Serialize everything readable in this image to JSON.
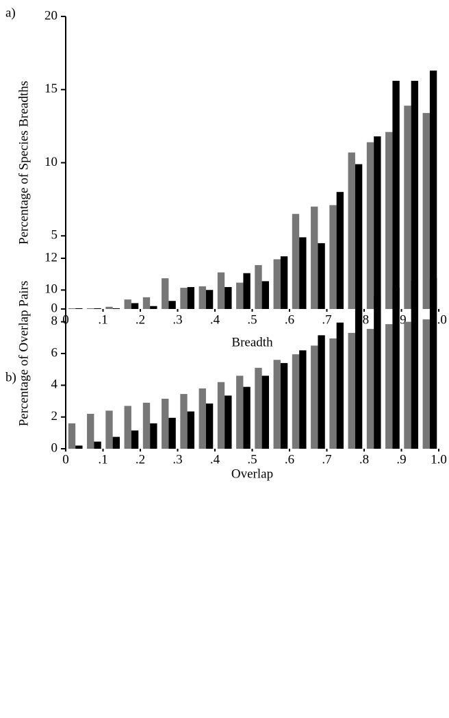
{
  "chart_data": [
    {
      "type": "histogram",
      "panel_label": "a)",
      "xlabel": "Breadth",
      "ylabel": "Percentage of Species Breadths",
      "bins": [
        0,
        0.05,
        0.1,
        0.15,
        0.2,
        0.25,
        0.3,
        0.35,
        0.4,
        0.45,
        0.5,
        0.55,
        0.6,
        0.65,
        0.7,
        0.75,
        0.8,
        0.85,
        0.9,
        0.95,
        1
      ],
      "xlim": [
        0,
        1
      ],
      "xticks": [
        0,
        {
          "value": 0.1,
          "label": ".1"
        },
        {
          "value": 0.2,
          "label": ".2"
        },
        {
          "value": 0.3,
          "label": ".3"
        },
        {
          "value": 0.4,
          "label": ".4"
        },
        {
          "value": 0.5,
          "label": ".5"
        },
        {
          "value": 0.6,
          "label": ".6"
        },
        {
          "value": 0.7,
          "label": ".7"
        },
        {
          "value": 0.8,
          "label": ".8"
        },
        {
          "value": 0.9,
          "label": ".9"
        },
        {
          "value": 1,
          "label": "1.0"
        }
      ],
      "ylim": [
        0,
        20
      ],
      "yticks": [
        0,
        5,
        10,
        15,
        20
      ],
      "series": [
        {
          "color": "#777777",
          "values": [
            0.05,
            0.05,
            0.15,
            0.65,
            0.8,
            2.1,
            1.45,
            1.55,
            2.5,
            1.8,
            3.0,
            3.4,
            6.5,
            7.0,
            7.1,
            10.7,
            11.4,
            12.1,
            13.9,
            13.4
          ]
        },
        {
          "color": "#000000",
          "values": [
            0.05,
            0.05,
            0.05,
            0.4,
            0.2,
            0.55,
            1.5,
            1.3,
            1.5,
            2.45,
            1.9,
            3.6,
            4.9,
            4.5,
            8.0,
            9.9,
            11.8,
            15.6,
            15.6,
            16.3
          ]
        }
      ]
    },
    {
      "type": "histogram",
      "panel_label": "b)",
      "xlabel": "Overlap",
      "ylabel": "Percentage of Overlap Pairs",
      "bins": [
        0,
        0.05,
        0.1,
        0.15,
        0.2,
        0.25,
        0.3,
        0.35,
        0.4,
        0.45,
        0.5,
        0.55,
        0.6,
        0.65,
        0.7,
        0.75,
        0.8,
        0.85,
        0.9,
        0.95,
        1
      ],
      "xlim": [
        0,
        1
      ],
      "xticks": [
        0,
        {
          "value": 0.1,
          "label": ".1"
        },
        {
          "value": 0.2,
          "label": ".2"
        },
        {
          "value": 0.3,
          "label": ".3"
        },
        {
          "value": 0.4,
          "label": ".4"
        },
        {
          "value": 0.5,
          "label": ".5"
        },
        {
          "value": 0.6,
          "label": ".6"
        },
        {
          "value": 0.7,
          "label": ".7"
        },
        {
          "value": 0.8,
          "label": ".8"
        },
        {
          "value": 0.9,
          "label": ".9"
        },
        {
          "value": 1,
          "label": "1.0"
        }
      ],
      "ylim": [
        0,
        12
      ],
      "yticks": [
        0,
        2,
        4,
        6,
        8,
        10,
        12
      ],
      "series": [
        {
          "color": "#777777",
          "values": [
            1.6,
            2.2,
            2.4,
            2.7,
            2.9,
            3.15,
            3.45,
            3.8,
            4.2,
            4.6,
            5.1,
            5.6,
            5.95,
            6.5,
            6.95,
            7.3,
            7.55,
            7.85,
            8.0,
            8.15
          ]
        },
        {
          "color": "#000000",
          "values": [
            0.2,
            0.45,
            0.75,
            1.15,
            1.6,
            1.95,
            2.35,
            2.85,
            3.35,
            3.9,
            4.6,
            5.4,
            6.2,
            7.15,
            7.95,
            8.85,
            9.6,
            10.15,
            10.6,
            10.75
          ]
        }
      ]
    }
  ]
}
